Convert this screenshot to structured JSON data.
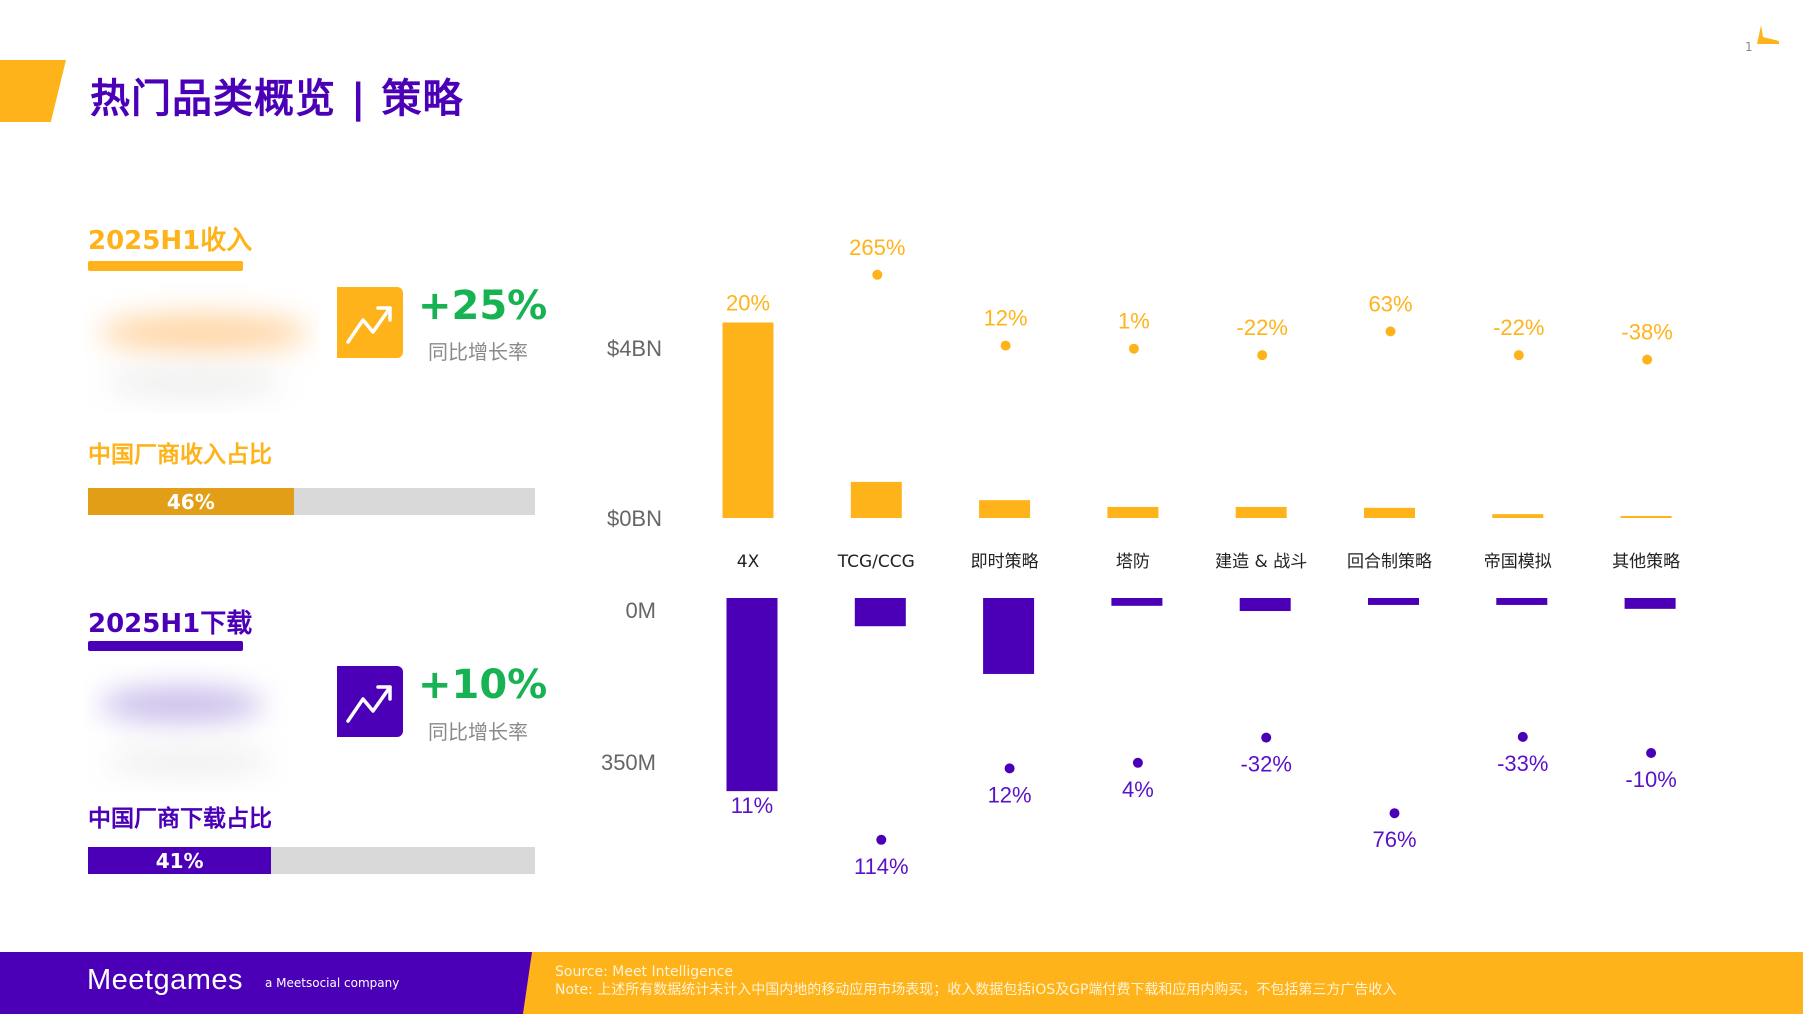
{
  "header": {
    "title": "热门品类概览 | 策略",
    "page_number": "1"
  },
  "colors": {
    "revenue": "#FFB31A",
    "revenue_share_fill": "#E39E17",
    "downloads": "#4B00B8",
    "growth_positive": "#17B252",
    "track": "#D9D9D9"
  },
  "revenue_panel": {
    "title": "2025H1收入",
    "icon": "trending-up-icon",
    "growth_value": "+25%",
    "growth_caption": "同比增长率",
    "share_label": "中国厂商收入占比",
    "share_value_text": "46%",
    "share_percent": 46
  },
  "downloads_panel": {
    "title": "2025H1下载",
    "icon": "trending-up-icon",
    "growth_value": "+10%",
    "growth_caption": "同比增长率",
    "share_label": "中国厂商下载占比",
    "share_value_text": "41%",
    "share_percent": 41
  },
  "chart_data": {
    "type": "bar",
    "categories": [
      "4X",
      "TCG/CCG",
      "即时策略",
      "塔防",
      "建造 & 战斗",
      "回合制策略",
      "帝国模拟",
      "其他策略"
    ],
    "series": [
      {
        "name": "Revenue",
        "unit": "$BN",
        "values": [
          4.6,
          0.85,
          0.42,
          0.26,
          0.26,
          0.24,
          0.09,
          0.02
        ],
        "yoy_growth_labels": [
          "20%",
          "265%",
          "12%",
          "1%",
          "-22%",
          "63%",
          "-22%",
          "-38%"
        ],
        "yoy_growth": [
          20,
          265,
          12,
          1,
          -22,
          63,
          -22,
          -38
        ],
        "axis_ticks": [
          "$4BN",
          "$0BN"
        ],
        "ylim": [
          0,
          4.6
        ],
        "direction": "up"
      },
      {
        "name": "Downloads",
        "unit": "M",
        "values": [
          445,
          65,
          175,
          18,
          30,
          16,
          16,
          25
        ],
        "yoy_growth_labels": [
          "11%",
          "114%",
          "12%",
          "4%",
          "-32%",
          "76%",
          "-33%",
          "-10%"
        ],
        "yoy_growth": [
          11,
          114,
          12,
          4,
          -32,
          76,
          -33,
          -10
        ],
        "axis_ticks": [
          "0M",
          "350M"
        ],
        "ylim": [
          0,
          445
        ],
        "direction": "down"
      }
    ],
    "title": "",
    "xlabel": "",
    "ylabel": "",
    "grid": false,
    "legend": "none"
  },
  "footer": {
    "brand": "Meetgames",
    "tagline": "a Meetsocial company",
    "source": "Source: Meet Intelligence",
    "note": "Note: 上述所有数据统计未计入中国内地的移动应用市场表现；收入数据包括iOS及GP端付费下载和应用内购买，不包括第三方广告收入"
  }
}
